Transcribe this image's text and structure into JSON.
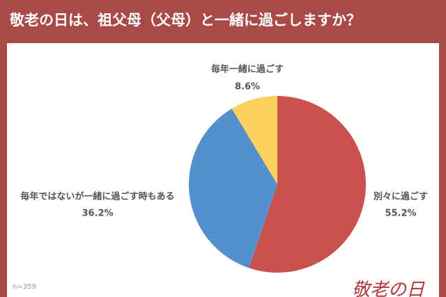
{
  "chart_data": {
    "type": "pie",
    "title": "敬老の日は、祖父母（父母）と一緒に過ごしますか？",
    "note": "n=359",
    "logo": "敬老の日",
    "categories": [
      "別々に過ごす",
      "毎年ではないが一緒に過ごす時もある",
      "毎年一緒に過ごす"
    ],
    "values": [
      55.2,
      36.2,
      8.6
    ],
    "value_labels": [
      "55.2%",
      "36.2%",
      "8.6%"
    ],
    "colors": [
      "#c9524f",
      "#5490cc",
      "#fbd15b"
    ]
  }
}
